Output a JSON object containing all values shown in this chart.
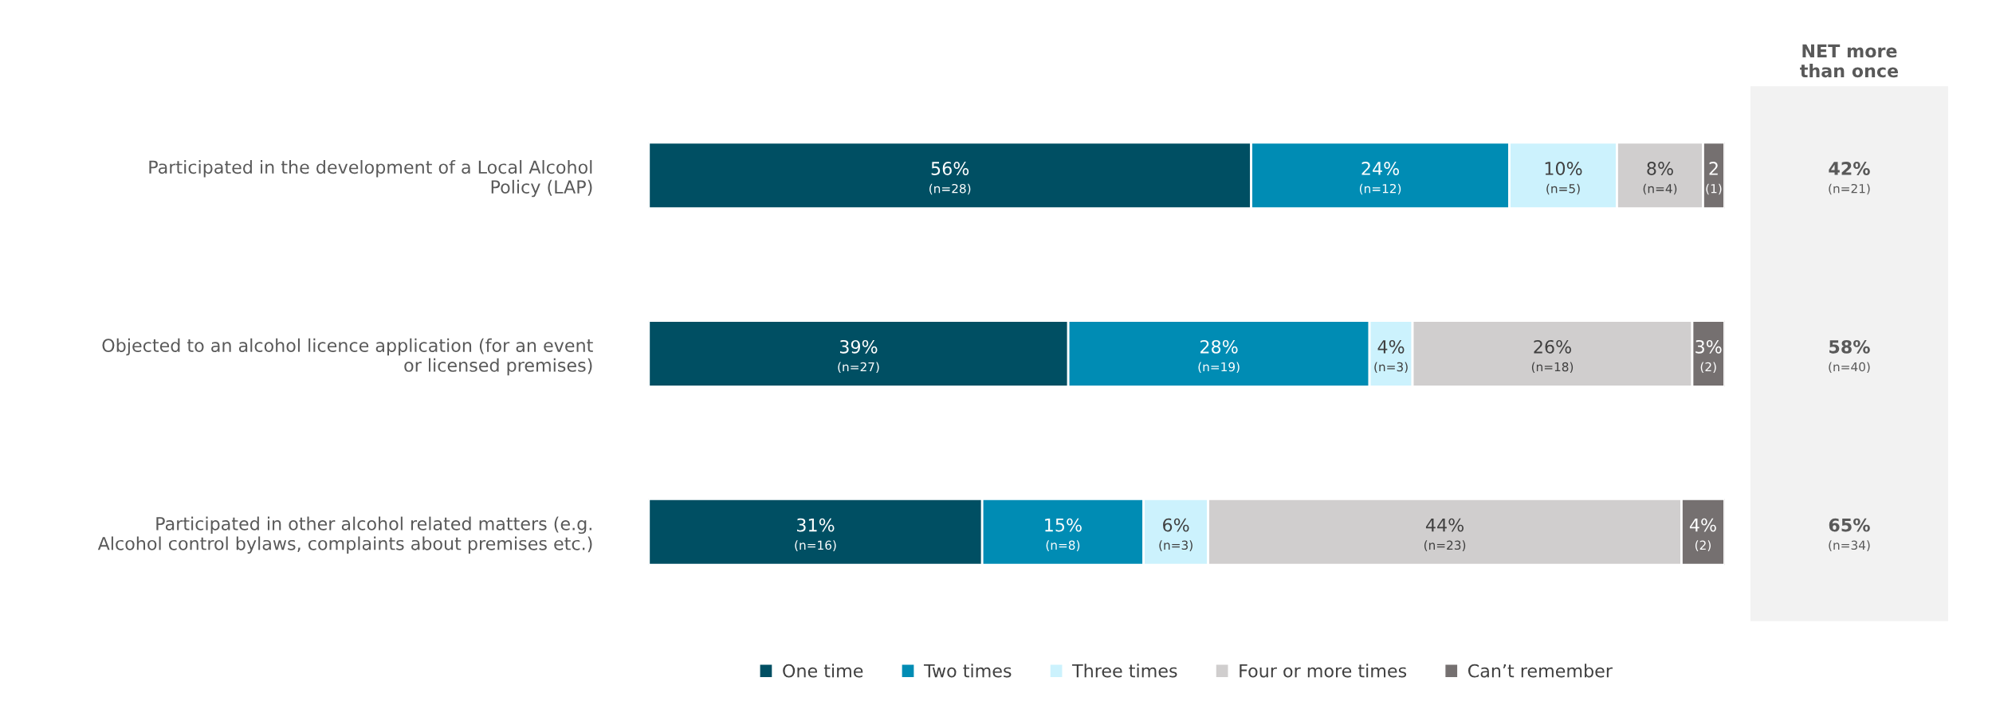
{
  "chart_data": {
    "type": "bar",
    "orientation": "horizontal",
    "stacked": true,
    "categories": [
      "Participated in the development of a Local Alcohol\nPolicy (LAP)",
      "Objected to an alcohol licence application (for an event\nor licensed premises)",
      "Participated in other alcohol related matters (e.g.\nAlcohol control bylaws, complaints about premises etc.)"
    ],
    "series": [
      {
        "name": "One time",
        "color": "#004f63",
        "values": [
          56,
          39,
          31
        ],
        "value_labels": [
          "56%\n(n=28)",
          "39%\n(n=27)",
          "31%\n(n=16)"
        ]
      },
      {
        "name": "Two times",
        "color": "#008cb4",
        "values": [
          24,
          28,
          15
        ],
        "value_labels": [
          "24%\n(n=12)",
          "28%\n(n=19)",
          "15%\n(n=8)"
        ]
      },
      {
        "name": "Three times",
        "color": "#ccf2fd",
        "values": [
          10,
          4,
          6
        ],
        "value_labels": [
          "10%\n(n=5)",
          "4%\n(n=3)",
          "6%\n(n=3)"
        ]
      },
      {
        "name": "Four or more times",
        "color": "#d0cece",
        "values": [
          8,
          26,
          44
        ],
        "value_labels": [
          "8%\n(n=4)",
          "26%\n(n=18)",
          "44%\n(n=23)"
        ]
      },
      {
        "name": "Can’t remember",
        "color": "#757070",
        "values": [
          2,
          3,
          4
        ],
        "value_labels": [
          "2\n(1)",
          "3%\n(2)",
          "4%\n(2)"
        ]
      }
    ],
    "annotations": [
      "NET more\nthan once",
      "42%\n(n=21)",
      "58%\n(n=40)",
      "65%\n(n=34)"
    ],
    "legend": "bottom",
    "tick_labels": "y",
    "grid": false
  }
}
